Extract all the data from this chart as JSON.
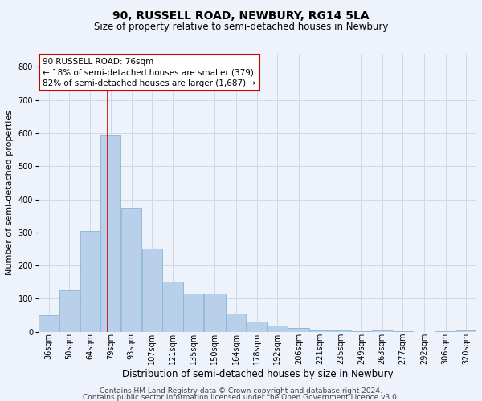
{
  "title": "90, RUSSELL ROAD, NEWBURY, RG14 5LA",
  "subtitle": "Size of property relative to semi-detached houses in Newbury",
  "xlabel": "Distribution of semi-detached houses by size in Newbury",
  "ylabel": "Number of semi-detached properties",
  "footnote1": "Contains HM Land Registry data © Crown copyright and database right 2024.",
  "footnote2": "Contains public sector information licensed under the Open Government Licence v3.0.",
  "annotation_title": "90 RUSSELL ROAD: 76sqm",
  "annotation_line1": "← 18% of semi-detached houses are smaller (379)",
  "annotation_line2": "82% of semi-detached houses are larger (1,687) →",
  "property_size": 76,
  "bar_labels": [
    "36sqm",
    "50sqm",
    "64sqm",
    "79sqm",
    "93sqm",
    "107sqm",
    "121sqm",
    "135sqm",
    "150sqm",
    "164sqm",
    "178sqm",
    "192sqm",
    "206sqm",
    "221sqm",
    "235sqm",
    "249sqm",
    "263sqm",
    "277sqm",
    "292sqm",
    "306sqm",
    "320sqm"
  ],
  "bar_values": [
    50,
    125,
    305,
    595,
    375,
    250,
    152,
    115,
    115,
    55,
    30,
    18,
    10,
    5,
    3,
    2,
    5,
    2,
    0,
    2,
    3
  ],
  "bar_edges": [
    29,
    43,
    57,
    71,
    85,
    99,
    113,
    127,
    141,
    156,
    170,
    184,
    198,
    213,
    227,
    241,
    255,
    269,
    283,
    298,
    312,
    326
  ],
  "bar_color": "#b8d0ea",
  "bar_edge_color": "#8ab4d4",
  "vline_color": "#cc0000",
  "vline_x": 76,
  "ylim": [
    0,
    840
  ],
  "yticks": [
    0,
    100,
    200,
    300,
    400,
    500,
    600,
    700,
    800
  ],
  "grid_color": "#d0d8e8",
  "bg_color": "#eef2fb",
  "annotation_box_color": "#ffffff",
  "annotation_box_edge": "#cc0000",
  "title_fontsize": 10,
  "subtitle_fontsize": 8.5,
  "ylabel_fontsize": 8,
  "xlabel_fontsize": 8.5,
  "tick_fontsize": 7,
  "footnote_fontsize": 6.5,
  "annotation_fontsize": 7.5
}
